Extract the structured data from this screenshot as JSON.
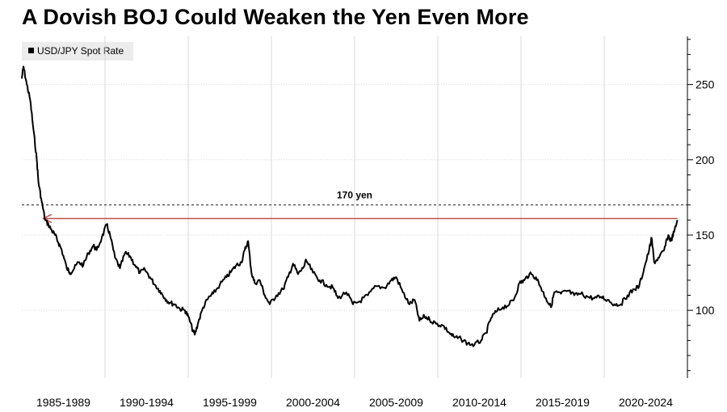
{
  "title": "A Dovish BOJ Could Weaken the Yen Even More",
  "colors": {
    "series": "#000000",
    "arrow": "#c0504d",
    "grid": "#d9d9d9",
    "legend_bg": "#ececec"
  },
  "chart_data": {
    "type": "line",
    "title": "A Dovish BOJ Could Weaken the Yen Even More",
    "xlabel": "",
    "ylabel": "",
    "x_range": [
      1985,
      2025
    ],
    "ylim": [
      55,
      282
    ],
    "y_ticks": [
      100,
      150,
      200,
      250
    ],
    "y_axis_position": "right",
    "x_tick_labels": [
      "1985-1989",
      "1990-1994",
      "1995-1999",
      "2000-2004",
      "2005-2009",
      "2010-2014",
      "2015-2019",
      "2020-2024"
    ],
    "grid": "vertical",
    "legend": {
      "position": "top-left",
      "entries": [
        "USD/JPY Spot Rate"
      ]
    },
    "series": [
      {
        "name": "USD/JPY Spot Rate",
        "x": [
          1985.0,
          1985.1,
          1985.3,
          1985.5,
          1985.7,
          1985.9,
          1986.0,
          1986.2,
          1986.4,
          1986.6,
          1986.8,
          1987.0,
          1987.2,
          1987.4,
          1987.7,
          1987.9,
          1988.1,
          1988.4,
          1988.7,
          1989.0,
          1989.3,
          1989.5,
          1989.8,
          1990.1,
          1990.3,
          1990.6,
          1990.9,
          1991.2,
          1991.5,
          1991.8,
          1992.1,
          1992.4,
          1992.7,
          1993.0,
          1993.3,
          1993.6,
          1993.9,
          1994.2,
          1994.5,
          1994.8,
          1995.0,
          1995.3,
          1995.4,
          1995.6,
          1995.9,
          1996.2,
          1996.5,
          1996.9,
          1997.3,
          1997.6,
          1997.9,
          1998.2,
          1998.4,
          1998.6,
          1998.8,
          1999.0,
          1999.3,
          1999.6,
          1999.9,
          2000.3,
          2000.7,
          2001.0,
          2001.3,
          2001.6,
          2001.9,
          2002.1,
          2002.5,
          2002.9,
          2003.3,
          2003.7,
          2004.0,
          2004.5,
          2004.9,
          2005.3,
          2005.8,
          2006.3,
          2006.8,
          2007.2,
          2007.5,
          2007.9,
          2008.3,
          2008.6,
          2008.9,
          2009.2,
          2009.5,
          2009.9,
          2010.3,
          2010.7,
          2011.0,
          2011.4,
          2011.8,
          2012.2,
          2012.6,
          2012.9,
          2013.2,
          2013.5,
          2013.9,
          2014.3,
          2014.6,
          2014.9,
          2015.2,
          2015.5,
          2015.9,
          2016.2,
          2016.5,
          2016.8,
          2017.0,
          2017.4,
          2017.8,
          2018.2,
          2018.6,
          2019.0,
          2019.4,
          2019.8,
          2020.2,
          2020.6,
          2021.0,
          2021.4,
          2021.8,
          2022.1,
          2022.4,
          2022.7,
          2022.85,
          2023.0,
          2023.3,
          2023.6,
          2023.85,
          2024.0,
          2024.2,
          2024.4
        ],
        "values": [
          254,
          262,
          250,
          240,
          220,
          200,
          185,
          172,
          160,
          157,
          153,
          150,
          145,
          140,
          128,
          125,
          127,
          132,
          130,
          138,
          143,
          140,
          148,
          157,
          150,
          135,
          128,
          138,
          136,
          130,
          125,
          127,
          122,
          117,
          113,
          108,
          105,
          104,
          101,
          100,
          96,
          86,
          84,
          92,
          102,
          108,
          111,
          117,
          122,
          126,
          130,
          132,
          140,
          146,
          125,
          118,
          120,
          110,
          104,
          110,
          114,
          122,
          131,
          124,
          128,
          133,
          125,
          120,
          117,
          115,
          108,
          112,
          104,
          106,
          110,
          116,
          115,
          120,
          122,
          112,
          104,
          107,
          93,
          96,
          94,
          91,
          90,
          85,
          82,
          81,
          78,
          77,
          80,
          85,
          95,
          99,
          102,
          104,
          108,
          118,
          120,
          124,
          122,
          115,
          108,
          102,
          112,
          111,
          113,
          110,
          111,
          109,
          108,
          109,
          107,
          104,
          104,
          110,
          114,
          116,
          128,
          140,
          148,
          132,
          135,
          140,
          150,
          146,
          152,
          160
        ]
      }
    ],
    "annotations": [
      {
        "type": "hline",
        "style": "dashed",
        "y": 170,
        "label": "170 yen"
      },
      {
        "type": "arrow",
        "y": 161,
        "x_from": 2024.4,
        "x_to": 1986.3
      }
    ]
  }
}
